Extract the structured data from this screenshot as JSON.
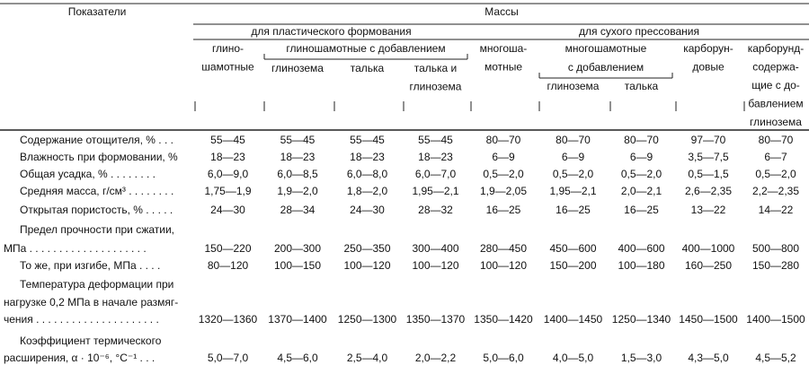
{
  "header": {
    "indicator": "Показатели",
    "masses": "Массы",
    "groups": [
      "для пластического формования",
      "для сухого прессования"
    ],
    "subgroups": [
      [
        "глиношамотные с добавлением"
      ],
      [
        "многошамотные",
        "с добавлением"
      ]
    ],
    "columns": [
      [
        "глино-",
        "шамотные"
      ],
      [
        "глинозема"
      ],
      [
        "талька"
      ],
      [
        "талька и",
        "глинозема"
      ],
      [
        "многоша-",
        "мотные"
      ],
      [
        "глинозема"
      ],
      [
        "талька"
      ],
      [
        "карборун-",
        "довые"
      ],
      [
        "карборунд-",
        "содержа-",
        "щие с до-",
        "бавлением",
        "глинозема"
      ]
    ]
  },
  "rows": [
    {
      "label": [
        "Содержание отощителя, % . . ."
      ],
      "values": [
        "55—45",
        "55—45",
        "55—45",
        "55—45",
        "80—70",
        "80—70",
        "80—70",
        "97—70",
        "80—70"
      ]
    },
    {
      "label": [
        "Влажность при формовании, %"
      ],
      "values": [
        "18—23",
        "18—23",
        "18—23",
        "18—23",
        "6—9",
        "6—9",
        "6—9",
        "3,5—7,5",
        "6—7"
      ]
    },
    {
      "label": [
        "Общая усадка, % . . . . . . . ."
      ],
      "values": [
        "6,0—9,0",
        "6,0—8,5",
        "6,0—8,0",
        "6,0—7,0",
        "0,5—2,0",
        "0,5—2,0",
        "0,5—2,0",
        "0,5—1,5",
        "0,5—2,0"
      ]
    },
    {
      "label": [
        "Средняя масса, г/см³ . . . . . . . ."
      ],
      "values": [
        "1,75—1,9",
        "1,9—2,0",
        "1,8—2,0",
        "1,95—2,1",
        "1,9—2,05",
        "1,95—2,1",
        "2,0—2,1",
        "2,6—2,35",
        "2,2—2,35"
      ]
    },
    {
      "label": [
        "Открытая пористость, % . . . . ."
      ],
      "values": [
        "24—30",
        "28—34",
        "24—30",
        "28—32",
        "16—25",
        "16—25",
        "16—25",
        "13—22",
        "14—22"
      ]
    },
    {
      "label": [
        "Предел прочности при сжатии,",
        "МПа . . . . . . . . . . . . . . . . . . . ."
      ],
      "values": [
        "150—220",
        "200—300",
        "250—350",
        "300—400",
        "280—450",
        "450—600",
        "400—600",
        "400—1000",
        "500—800"
      ]
    },
    {
      "label": [
        "То же, при изгибе, МПа . . . ."
      ],
      "values": [
        "80—120",
        "100—150",
        "100—120",
        "100—120",
        "100—120",
        "150—200",
        "100—180",
        "160—250",
        "150—280"
      ]
    },
    {
      "label": [
        "Температура деформации при",
        "нагрузке 0,2 МПа в начале размяг-",
        "чения . . . . . . . . . . . . . . . . . . . . ."
      ],
      "values": [
        "1320—1360",
        "1370—1400",
        "1250—1300",
        "1350—1370",
        "1350—1420",
        "1400—1450",
        "1250—1340",
        "1450—1500",
        "1400—1500"
      ]
    },
    {
      "label": [
        "Коэффициент термического",
        "расширения, α · 10⁻⁶, °С⁻¹ . . ."
      ],
      "values": [
        "5,0—7,0",
        "4,5—6,0",
        "2,5—4,0",
        "2,0—2,2",
        "5,0—6,0",
        "4,0—5,0",
        "1,5—3,0",
        "4,3—5,0",
        "4,5—5,2"
      ]
    }
  ]
}
